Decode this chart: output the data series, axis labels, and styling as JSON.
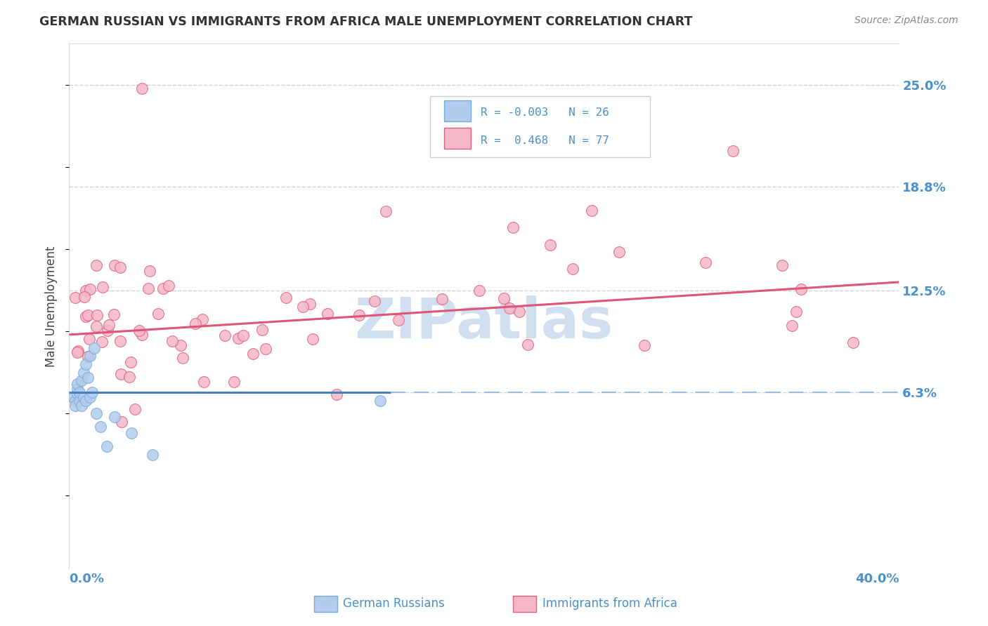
{
  "title": "GERMAN RUSSIAN VS IMMIGRANTS FROM AFRICA MALE UNEMPLOYMENT CORRELATION CHART",
  "source": "Source: ZipAtlas.com",
  "ylabel": "Male Unemployment",
  "xlim": [
    0.0,
    0.4
  ],
  "ylim": [
    -0.045,
    0.275
  ],
  "ytick_values": [
    0.063,
    0.125,
    0.188,
    0.25
  ],
  "ytick_labels": [
    "6.3%",
    "12.5%",
    "18.8%",
    "25.0%"
  ],
  "label1": "German Russians",
  "label2": "Immigrants from Africa",
  "color_blue": "#b3ccee",
  "color_pink": "#f5b8c8",
  "edge_blue": "#7aaad4",
  "edge_pink": "#e06080",
  "line_blue": "#4a7ec4",
  "line_pink": "#e05575",
  "line_blue_dash": "#99bbdd",
  "watermark_color": "#d0dff0",
  "background_color": "#ffffff",
  "grid_color": "#c8d4e0",
  "axis_label_color": "#4a90cc",
  "title_color": "#333333",
  "source_color": "#888888",
  "ylabel_color": "#444444"
}
